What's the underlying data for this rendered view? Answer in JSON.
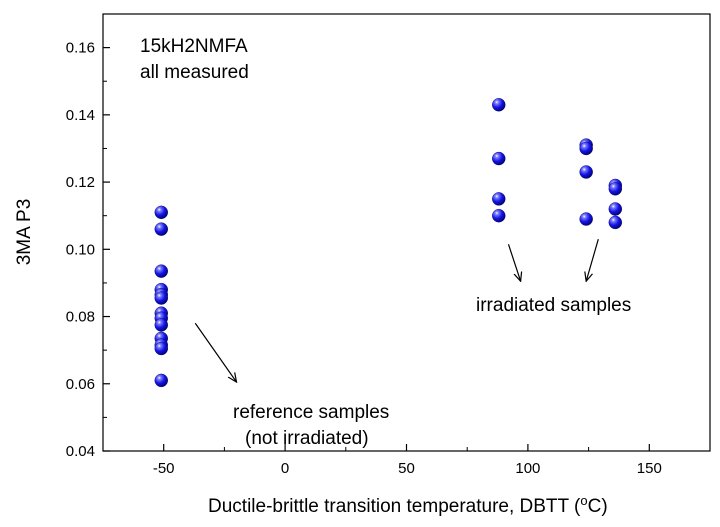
{
  "chart_data": {
    "type": "scatter",
    "title": "",
    "xlabel": "Ductile-brittle transition temperature, DBTT (",
    "xlabel_sup": "o",
    "xlabel_end": "C)",
    "ylabel": "3MA  P3",
    "xlim": [
      -75,
      175
    ],
    "ylim": [
      0.04,
      0.17
    ],
    "xticks": [
      -50,
      0,
      50,
      100,
      150
    ],
    "xtick_labels": [
      "-50",
      "0",
      "50",
      "100",
      "150"
    ],
    "yticks": [
      0.04,
      0.06,
      0.08,
      0.1,
      0.12,
      0.14,
      0.16
    ],
    "ytick_labels": [
      "0.04",
      "0.06",
      "0.08",
      "0.10",
      "0.12",
      "0.14",
      "0.16"
    ],
    "series": [
      {
        "name": "15kH2NMFA all measured",
        "color": "#1a1aee",
        "points": [
          {
            "x": -51,
            "y": 0.111
          },
          {
            "x": -51,
            "y": 0.106
          },
          {
            "x": -51,
            "y": 0.0935
          },
          {
            "x": -51,
            "y": 0.088
          },
          {
            "x": -51,
            "y": 0.0865
          },
          {
            "x": -51,
            "y": 0.0855
          },
          {
            "x": -51,
            "y": 0.081
          },
          {
            "x": -51,
            "y": 0.0795
          },
          {
            "x": -51,
            "y": 0.0775
          },
          {
            "x": -51,
            "y": 0.0735
          },
          {
            "x": -51,
            "y": 0.0715
          },
          {
            "x": -51,
            "y": 0.0705
          },
          {
            "x": -51,
            "y": 0.061
          },
          {
            "x": 88,
            "y": 0.143
          },
          {
            "x": 88,
            "y": 0.127
          },
          {
            "x": 88,
            "y": 0.115
          },
          {
            "x": 88,
            "y": 0.11
          },
          {
            "x": 124,
            "y": 0.131
          },
          {
            "x": 124,
            "y": 0.13
          },
          {
            "x": 124,
            "y": 0.123
          },
          {
            "x": 124,
            "y": 0.109
          },
          {
            "x": 136,
            "y": 0.119
          },
          {
            "x": 136,
            "y": 0.118
          },
          {
            "x": 136,
            "y": 0.112
          },
          {
            "x": 136,
            "y": 0.108
          }
        ]
      }
    ],
    "annotations": {
      "legend_line1": "15kH2NMFA",
      "legend_line2": "all measured",
      "irradiated": "irradiated samples",
      "reference_line1": "reference samples",
      "reference_line2": "(not irradiated)"
    },
    "arrows": [
      {
        "name": "reference-arrow",
        "from": [
          -37,
          0.078
        ],
        "to": [
          -20,
          0.0605
        ]
      },
      {
        "name": "irradiated-arrow-left",
        "from": [
          92,
          0.1015
        ],
        "to": [
          97,
          0.0905
        ]
      },
      {
        "name": "irradiated-arrow-right",
        "from": [
          129,
          0.103
        ],
        "to": [
          124,
          0.0905
        ]
      }
    ],
    "grid": false
  }
}
